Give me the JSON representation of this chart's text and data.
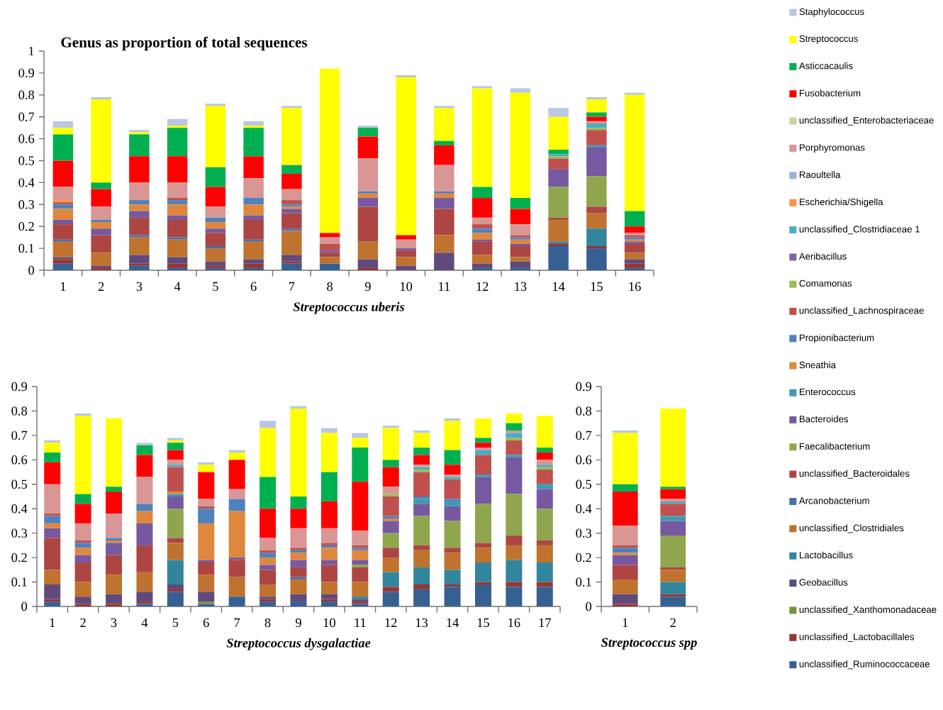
{
  "chart_data": [
    {
      "type": "bar",
      "stacked": true,
      "title": "Genus as proportion of total sequences",
      "xlabel": "Streptococcus uberis",
      "legend": "right",
      "categories": [
        "1",
        "2",
        "3",
        "4",
        "5",
        "6",
        "7",
        "8",
        "9",
        "10",
        "11",
        "12",
        "13",
        "14",
        "15",
        "16"
      ],
      "ylim": [
        0,
        1
      ],
      "yticks": [
        0,
        0.1,
        0.2,
        0.3,
        0.4,
        0.5,
        0.6,
        0.7,
        0.8,
        0.9,
        1
      ],
      "series": [
        {
          "name": "unclassified_Ruminococcaceae",
          "color": "#376092",
          "values": [
            0.03,
            0,
            0.02,
            0.01,
            0.01,
            0.01,
            0.03,
            0.03,
            0,
            0,
            0,
            0.01,
            0.01,
            0.11,
            0.1,
            0.01
          ]
        },
        {
          "name": "unclassified_Lactobacillales",
          "color": "#953735",
          "values": [
            0.02,
            0.01,
            0.01,
            0.02,
            0.01,
            0.02,
            0.01,
            0,
            0.01,
            0,
            0,
            0,
            0,
            0.01,
            0.01,
            0.02
          ]
        },
        {
          "name": "unclassified_Xanthomonadaceae",
          "color": "#77933c",
          "values": [
            0,
            0,
            0,
            0,
            0,
            0,
            0,
            0,
            0,
            0,
            0,
            0,
            0,
            0,
            0,
            0
          ]
        },
        {
          "name": "Geobacillus",
          "color": "#604a7b",
          "values": [
            0.01,
            0.01,
            0.04,
            0.03,
            0.02,
            0.02,
            0.03,
            0,
            0.04,
            0.02,
            0.08,
            0.02,
            0.03,
            0,
            0,
            0.02
          ]
        },
        {
          "name": "Lactobacillus",
          "color": "#31859c",
          "values": [
            0,
            0,
            0,
            0,
            0,
            0,
            0,
            0,
            0,
            0,
            0,
            0,
            0,
            0.01,
            0.08,
            0
          ]
        },
        {
          "name": "unclassified_Clostridiales",
          "color": "#c0722f",
          "values": [
            0.07,
            0.06,
            0.08,
            0.08,
            0.06,
            0.08,
            0.11,
            0.03,
            0.08,
            0.04,
            0.08,
            0.04,
            0.02,
            0.1,
            0.07,
            0.03
          ]
        },
        {
          "name": "Arcanobacterium",
          "color": "#4a6ea8",
          "values": [
            0.01,
            0,
            0.01,
            0.01,
            0.01,
            0.01,
            0.01,
            0,
            0,
            0,
            0,
            0,
            0,
            0,
            0,
            0
          ]
        },
        {
          "name": "unclassified_Bacteroidales",
          "color": "#ad4543",
          "values": [
            0.07,
            0.08,
            0.08,
            0.08,
            0.06,
            0.09,
            0.07,
            0.02,
            0.16,
            0.03,
            0.12,
            0.06,
            0.05,
            0.01,
            0.03,
            0.04
          ]
        },
        {
          "name": "Faecalibacterium",
          "color": "#8fa64e",
          "values": [
            0,
            0,
            0,
            0,
            0,
            0,
            0,
            0,
            0,
            0,
            0,
            0,
            0,
            0.14,
            0.14,
            0
          ]
        },
        {
          "name": "Bacteroides",
          "color": "#7659a0",
          "values": [
            0.02,
            0.03,
            0.03,
            0.02,
            0.02,
            0.02,
            0.02,
            0.01,
            0.04,
            0.01,
            0.05,
            0.01,
            0.01,
            0.08,
            0.13,
            0.01
          ]
        },
        {
          "name": "Enterococcus",
          "color": "#3c9bb5",
          "values": [
            0,
            0,
            0,
            0,
            0,
            0,
            0,
            0,
            0,
            0,
            0,
            0,
            0,
            0,
            0.01,
            0
          ]
        },
        {
          "name": "Sneathia",
          "color": "#e0873e",
          "values": [
            0.05,
            0.03,
            0.03,
            0.05,
            0.03,
            0.05,
            0.01,
            0,
            0.02,
            0,
            0.02,
            0.03,
            0.02,
            0,
            0,
            0.01
          ]
        },
        {
          "name": "Propionibacterium",
          "color": "#4f81bd",
          "values": [
            0.02,
            0.01,
            0.02,
            0.02,
            0.02,
            0.03,
            0.01,
            0,
            0.01,
            0,
            0.01,
            0.02,
            0.01,
            0,
            0,
            0.01
          ]
        },
        {
          "name": "unclassified_Lachnospiraceae",
          "color": "#c0504d",
          "values": [
            0.01,
            0,
            0,
            0.01,
            0,
            0,
            0.02,
            0.03,
            0,
            0,
            0,
            0.02,
            0.01,
            0.05,
            0.07,
            0.01
          ]
        },
        {
          "name": "Comamonas",
          "color": "#9bbb59",
          "values": [
            0,
            0,
            0,
            0,
            0,
            0,
            0,
            0,
            0,
            0,
            0,
            0,
            0,
            0.01,
            0.01,
            0
          ]
        },
        {
          "name": "Aeribacillus",
          "color": "#8064a2",
          "values": [
            0,
            0,
            0,
            0,
            0,
            0,
            0,
            0,
            0,
            0,
            0,
            0,
            0,
            0,
            0,
            0
          ]
        },
        {
          "name": "unclassified_Clostridiaceae 1",
          "color": "#4bacc6",
          "values": [
            0,
            0,
            0,
            0,
            0,
            0,
            0,
            0,
            0,
            0,
            0,
            0,
            0,
            0.01,
            0.02,
            0
          ]
        },
        {
          "name": "Escherichia/Shigella",
          "color": "#f79646",
          "values": [
            0.01,
            0,
            0,
            0,
            0,
            0,
            0,
            0,
            0,
            0,
            0,
            0,
            0,
            0,
            0,
            0
          ]
        },
        {
          "name": "Raoultella",
          "color": "#95b3d7",
          "values": [
            0,
            0,
            0,
            0,
            0,
            0,
            0,
            0,
            0,
            0,
            0,
            0,
            0,
            0,
            0,
            0
          ]
        },
        {
          "name": "Porphyromonas",
          "color": "#d99694",
          "values": [
            0.06,
            0.06,
            0.08,
            0.07,
            0.05,
            0.09,
            0.05,
            0.03,
            0.15,
            0.04,
            0.12,
            0.03,
            0.05,
            0,
            0.01,
            0.01
          ]
        },
        {
          "name": "unclassified_Enterobacteriaceae",
          "color": "#c3d69b",
          "values": [
            0,
            0,
            0,
            0,
            0,
            0,
            0,
            0,
            0,
            0,
            0,
            0,
            0,
            0,
            0,
            0
          ]
        },
        {
          "name": "Fusobacterium",
          "color": "#ff0000",
          "values": [
            0.12,
            0.08,
            0.12,
            0.12,
            0.09,
            0.1,
            0.07,
            0.02,
            0.1,
            0.02,
            0.09,
            0.09,
            0.07,
            0,
            0.02,
            0.03
          ]
        },
        {
          "name": "Asticcacaulis",
          "color": "#00b050",
          "values": [
            0.12,
            0.03,
            0.1,
            0.13,
            0.09,
            0.13,
            0.04,
            0,
            0.04,
            0,
            0.02,
            0.05,
            0.05,
            0.02,
            0.02,
            0.07
          ]
        },
        {
          "name": "Streptococcus",
          "color": "#ffff00",
          "values": [
            0.03,
            0.38,
            0.01,
            0.01,
            0.28,
            0.01,
            0.26,
            0.75,
            0,
            0.72,
            0.15,
            0.45,
            0.48,
            0.15,
            0.06,
            0.53
          ]
        },
        {
          "name": "Staphylococcus",
          "color": "#b9c7e4",
          "values": [
            0.03,
            0.01,
            0.01,
            0.03,
            0.01,
            0.02,
            0.01,
            0,
            0.01,
            0.01,
            0.01,
            0.01,
            0.02,
            0.04,
            0.01,
            0.01
          ]
        }
      ]
    },
    {
      "type": "bar",
      "stacked": true,
      "xlabel": "Streptococcus dysgalactiae",
      "categories": [
        "1",
        "2",
        "3",
        "4",
        "5",
        "6",
        "7",
        "8",
        "9",
        "10",
        "11",
        "12",
        "13",
        "14",
        "15",
        "16",
        "17"
      ],
      "ylim": [
        0,
        0.9
      ],
      "yticks": [
        0,
        0.1,
        0.2,
        0.3,
        0.4,
        0.5,
        0.6,
        0.7,
        0.8,
        0.9
      ],
      "series": [
        {
          "color": "#376092",
          "values": [
            0.02,
            0,
            0,
            0.01,
            0.06,
            0.01,
            0.04,
            0.02,
            0.02,
            0.02,
            0.01,
            0.06,
            0.07,
            0.08,
            0.09,
            0.08,
            0.08
          ]
        },
        {
          "color": "#953735",
          "values": [
            0.01,
            0.01,
            0.01,
            0.01,
            0.01,
            0,
            0,
            0.01,
            0,
            0.01,
            0.01,
            0.02,
            0.02,
            0.01,
            0.01,
            0.02,
            0.02
          ]
        },
        {
          "color": "#77933c",
          "values": [
            0,
            0,
            0,
            0,
            0,
            0.01,
            0,
            0,
            0,
            0,
            0,
            0,
            0,
            0,
            0,
            0,
            0
          ]
        },
        {
          "color": "#604a7b",
          "values": [
            0.06,
            0.03,
            0.04,
            0.04,
            0.02,
            0.04,
            0,
            0.01,
            0.03,
            0.02,
            0.01,
            0,
            0,
            0,
            0,
            0,
            0
          ]
        },
        {
          "color": "#31859c",
          "values": [
            0,
            0,
            0,
            0,
            0.1,
            0,
            0,
            0,
            0,
            0,
            0.01,
            0.06,
            0.07,
            0.06,
            0.08,
            0.09,
            0.08
          ]
        },
        {
          "color": "#c0722f",
          "values": [
            0.06,
            0.06,
            0.08,
            0.08,
            0.07,
            0.07,
            0.08,
            0.05,
            0.06,
            0.05,
            0.06,
            0.06,
            0.07,
            0.07,
            0.06,
            0.06,
            0.07
          ]
        },
        {
          "color": "#4a6ea8",
          "values": [
            0,
            0,
            0,
            0,
            0,
            0,
            0,
            0,
            0.01,
            0,
            0,
            0,
            0,
            0,
            0,
            0,
            0
          ]
        },
        {
          "color": "#ad4543",
          "values": [
            0.13,
            0.08,
            0.08,
            0.11,
            0.02,
            0.05,
            0.07,
            0.06,
            0.04,
            0.07,
            0.06,
            0.04,
            0.02,
            0.02,
            0.02,
            0.04,
            0.02
          ]
        },
        {
          "color": "#8fa64e",
          "values": [
            0,
            0,
            0,
            0,
            0.12,
            0,
            0,
            0,
            0,
            0,
            0.01,
            0.06,
            0.12,
            0.11,
            0.16,
            0.17,
            0.13
          ]
        },
        {
          "color": "#7659a0",
          "values": [
            0.04,
            0.03,
            0.05,
            0.09,
            0.05,
            0.01,
            0.01,
            0.02,
            0.03,
            0.02,
            0.02,
            0.05,
            0.05,
            0.06,
            0.11,
            0.15,
            0.08
          ]
        },
        {
          "color": "#3c9bb5",
          "values": [
            0,
            0,
            0,
            0,
            0.01,
            0,
            0,
            0,
            0,
            0,
            0,
            0,
            0.02,
            0.02,
            0.01,
            0.01,
            0.02
          ]
        },
        {
          "color": "#e0873e",
          "values": [
            0.02,
            0.03,
            0.01,
            0.05,
            0.01,
            0.15,
            0.19,
            0.03,
            0.03,
            0.05,
            0.04,
            0.01,
            0,
            0,
            0,
            0,
            0
          ]
        },
        {
          "color": "#4f81bd",
          "values": [
            0.03,
            0.02,
            0.01,
            0.03,
            0,
            0.06,
            0.05,
            0.02,
            0.01,
            0.01,
            0.01,
            0.01,
            0.01,
            0.01,
            0,
            0,
            0
          ]
        },
        {
          "color": "#c0504d",
          "values": [
            0.01,
            0.01,
            0,
            0,
            0.1,
            0.01,
            0,
            0.01,
            0.01,
            0.01,
            0.01,
            0.08,
            0.1,
            0.08,
            0.08,
            0.06,
            0.06
          ]
        },
        {
          "color": "#9bbb59",
          "values": [
            0,
            0,
            0,
            0,
            0,
            0,
            0,
            0,
            0,
            0,
            0,
            0.01,
            0.01,
            0,
            0,
            0.01,
            0.01
          ]
        },
        {
          "color": "#8064a2",
          "values": [
            0,
            0,
            0,
            0,
            0,
            0,
            0,
            0,
            0,
            0,
            0,
            0,
            0,
            0,
            0,
            0,
            0
          ]
        },
        {
          "color": "#4bacc6",
          "values": [
            0,
            0,
            0,
            0,
            0.01,
            0,
            0,
            0,
            0,
            0,
            0,
            0,
            0.01,
            0.01,
            0.02,
            0.02,
            0.01
          ]
        },
        {
          "color": "#f79646",
          "values": [
            0,
            0,
            0,
            0,
            0,
            0,
            0,
            0,
            0,
            0,
            0,
            0,
            0,
            0,
            0,
            0,
            0
          ]
        },
        {
          "color": "#95b3d7",
          "values": [
            0,
            0,
            0,
            0,
            0,
            0,
            0,
            0,
            0,
            0,
            0,
            0,
            0,
            0,
            0,
            0,
            0
          ]
        },
        {
          "color": "#d99694",
          "values": [
            0.12,
            0.07,
            0.1,
            0.11,
            0.02,
            0.03,
            0.04,
            0.05,
            0.08,
            0.06,
            0.06,
            0.03,
            0.01,
            0.01,
            0.01,
            0.01,
            0.02
          ]
        },
        {
          "color": "#c3d69b",
          "values": [
            0,
            0,
            0,
            0,
            0,
            0,
            0,
            0,
            0,
            0,
            0,
            0,
            0,
            0,
            0,
            0,
            0
          ]
        },
        {
          "color": "#ff0000",
          "values": [
            0.09,
            0.08,
            0.09,
            0.09,
            0.04,
            0.11,
            0.12,
            0.12,
            0.08,
            0.11,
            0.2,
            0.08,
            0.04,
            0.04,
            0.02,
            0,
            0.03
          ]
        },
        {
          "color": "#00b050",
          "values": [
            0.04,
            0.04,
            0.02,
            0.04,
            0.03,
            0,
            0,
            0.13,
            0.05,
            0.12,
            0.14,
            0.03,
            0.03,
            0.06,
            0.02,
            0.03,
            0.02
          ]
        },
        {
          "color": "#ffff00",
          "values": [
            0.04,
            0.32,
            0.28,
            0,
            0.01,
            0.03,
            0.03,
            0.2,
            0.36,
            0.16,
            0.04,
            0.13,
            0.06,
            0.12,
            0.08,
            0.04,
            0.13
          ]
        },
        {
          "color": "#b9c7e4",
          "values": [
            0.01,
            0.01,
            0,
            0.01,
            0.01,
            0.01,
            0.01,
            0.03,
            0.01,
            0.02,
            0.02,
            0.01,
            0.01,
            0.01,
            0,
            0,
            0
          ]
        }
      ]
    },
    {
      "type": "bar",
      "stacked": true,
      "xlabel": "Streptococcus spp",
      "categories": [
        "1",
        "2"
      ],
      "ylim": [
        0,
        0.9
      ],
      "yticks": [
        0,
        0.1,
        0.2,
        0.3,
        0.4,
        0.5,
        0.6,
        0.7,
        0.8,
        0.9
      ],
      "series": [
        {
          "color": "#376092",
          "values": [
            0,
            0.04
          ]
        },
        {
          "color": "#953735",
          "values": [
            0.01,
            0.01
          ]
        },
        {
          "color": "#77933c",
          "values": [
            0,
            0
          ]
        },
        {
          "color": "#604a7b",
          "values": [
            0.04,
            0
          ]
        },
        {
          "color": "#31859c",
          "values": [
            0,
            0.05
          ]
        },
        {
          "color": "#c0722f",
          "values": [
            0.06,
            0.05
          ]
        },
        {
          "color": "#4a6ea8",
          "values": [
            0,
            0
          ]
        },
        {
          "color": "#ad4543",
          "values": [
            0.06,
            0.01
          ]
        },
        {
          "color": "#8fa64e",
          "values": [
            0,
            0.13
          ]
        },
        {
          "color": "#7659a0",
          "values": [
            0.04,
            0.06
          ]
        },
        {
          "color": "#3c9bb5",
          "values": [
            0,
            0.02
          ]
        },
        {
          "color": "#e0873e",
          "values": [
            0.01,
            0
          ]
        },
        {
          "color": "#4f81bd",
          "values": [
            0.02,
            0
          ]
        },
        {
          "color": "#c0504d",
          "values": [
            0.01,
            0.05
          ]
        },
        {
          "color": "#9bbb59",
          "values": [
            0,
            0
          ]
        },
        {
          "color": "#8064a2",
          "values": [
            0,
            0
          ]
        },
        {
          "color": "#4bacc6",
          "values": [
            0,
            0.01
          ]
        },
        {
          "color": "#f79646",
          "values": [
            0,
            0
          ]
        },
        {
          "color": "#95b3d7",
          "values": [
            0,
            0
          ]
        },
        {
          "color": "#d99694",
          "values": [
            0.08,
            0.01
          ]
        },
        {
          "color": "#c3d69b",
          "values": [
            0,
            0
          ]
        },
        {
          "color": "#ff0000",
          "values": [
            0.14,
            0.04
          ]
        },
        {
          "color": "#00b050",
          "values": [
            0.03,
            0.01
          ]
        },
        {
          "color": "#ffff00",
          "values": [
            0.21,
            0.32
          ]
        },
        {
          "color": "#b9c7e4",
          "values": [
            0.01,
            0
          ]
        }
      ]
    }
  ]
}
